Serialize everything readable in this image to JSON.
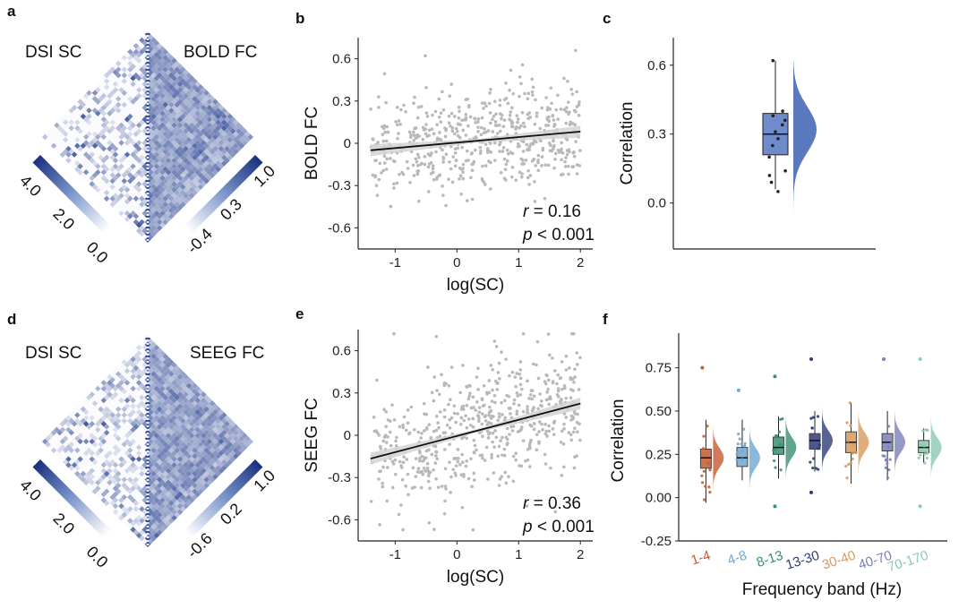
{
  "chart_data": [
    {
      "panel": "a",
      "type": "heatmap",
      "left_label": "DSI SC",
      "right_label": "BOLD FC",
      "left_colorbar": {
        "ticks": [
          "4.0",
          "2.0",
          "0.0"
        ],
        "range": [
          0.0,
          4.0
        ]
      },
      "right_colorbar": {
        "ticks": [
          "1.0",
          "0.3",
          "-0.4"
        ],
        "range": [
          -0.4,
          1.0
        ]
      }
    },
    {
      "panel": "b",
      "type": "scatter",
      "xlabel": "log(SC)",
      "ylabel": "BOLD FC",
      "xticks": [
        "-1",
        "0",
        "1",
        "2"
      ],
      "yticks": [
        "0.6",
        "0.3",
        "0",
        "-0.3",
        "-0.6"
      ],
      "xlim": [
        -1.6,
        2.2
      ],
      "ylim": [
        -0.75,
        0.75
      ],
      "fit": {
        "slope": 0.039,
        "intercept": 0.005,
        "x_range": [
          -1.4,
          2.0
        ]
      },
      "r_label": "r",
      "r_text": " = 0.16",
      "p_label": "p",
      "p_text": " < 0.001",
      "points_description_count": 560,
      "points_seed": 7,
      "noise_sd": 0.2
    },
    {
      "panel": "c",
      "type": "box",
      "ylabel": "Correlation",
      "yticks": [
        "0.6",
        "0.3",
        "0.0"
      ],
      "ylim": [
        -0.2,
        0.72
      ],
      "box": {
        "q1": 0.21,
        "median": 0.3,
        "q3": 0.39,
        "whisker_low": 0.06,
        "whisker_high": 0.62
      },
      "points": [
        0.62,
        0.4,
        0.38,
        0.36,
        0.34,
        0.31,
        0.28,
        0.25,
        0.2,
        0.14,
        0.12,
        0.09,
        0.05
      ],
      "color": "#5b79bf"
    },
    {
      "panel": "d",
      "type": "heatmap",
      "left_label": "DSI SC",
      "right_label": "SEEG FC",
      "left_colorbar": {
        "ticks": [
          "4.0",
          "2.0",
          "0.0"
        ],
        "range": [
          0.0,
          4.0
        ]
      },
      "right_colorbar": {
        "ticks": [
          "1.0",
          "0.2",
          "-0.6"
        ],
        "range": [
          -0.6,
          1.0
        ]
      }
    },
    {
      "panel": "e",
      "type": "scatter",
      "xlabel": "log(SC)",
      "ylabel": "SEEG FC",
      "xticks": [
        "-1",
        "0",
        "1",
        "2"
      ],
      "yticks": [
        "0.6",
        "0.3",
        "0",
        "-0.3",
        "-0.6"
      ],
      "xlim": [
        -1.6,
        2.2
      ],
      "ylim": [
        -0.75,
        0.75
      ],
      "fit": {
        "slope": 0.115,
        "intercept": -0.005,
        "x_range": [
          -1.4,
          2.0
        ]
      },
      "r_label": "r",
      "r_text": " = 0.36",
      "p_label": "p",
      "p_text": " < 0.001",
      "points_description_count": 560,
      "points_seed": 13,
      "noise_sd": 0.27
    },
    {
      "panel": "f",
      "type": "box",
      "xlabel": "Frequency band (Hz)",
      "ylabel": "Correlation",
      "yticks": [
        "0.75",
        "0.50",
        "0.25",
        "0.00",
        "-0.25"
      ],
      "ylim": [
        -0.25,
        0.95
      ],
      "categories": [
        "1-4",
        "4-8",
        "8-13",
        "13-30",
        "30-40",
        "40-70",
        "70-170"
      ],
      "colors": [
        "#c65a2e",
        "#6fa6d3",
        "#3a8f74",
        "#2e3c78",
        "#d89a5c",
        "#7b7fb8",
        "#8cc8b0"
      ],
      "series": [
        {
          "name": "1-4",
          "q1": 0.17,
          "median": 0.23,
          "q3": 0.28,
          "whisker_low": -0.03,
          "whisker_high": 0.45,
          "outliers": [
            0.75
          ]
        },
        {
          "name": "4-8",
          "q1": 0.18,
          "median": 0.23,
          "q3": 0.29,
          "whisker_low": 0.1,
          "whisker_high": 0.45,
          "outliers": [
            0.62
          ]
        },
        {
          "name": "8-13",
          "q1": 0.25,
          "median": 0.29,
          "q3": 0.35,
          "whisker_low": 0.11,
          "whisker_high": 0.47,
          "outliers": [
            -0.05,
            0.7
          ]
        },
        {
          "name": "13-30",
          "q1": 0.28,
          "median": 0.33,
          "q3": 0.37,
          "whisker_low": 0.15,
          "whisker_high": 0.5,
          "outliers": [
            0.03,
            0.8
          ]
        },
        {
          "name": "30-40",
          "q1": 0.26,
          "median": 0.32,
          "q3": 0.38,
          "whisker_low": 0.08,
          "whisker_high": 0.55,
          "outliers": []
        },
        {
          "name": "40-70",
          "q1": 0.27,
          "median": 0.32,
          "q3": 0.37,
          "whisker_low": 0.1,
          "whisker_high": 0.5,
          "outliers": [
            0.8
          ]
        },
        {
          "name": "70-170",
          "q1": 0.26,
          "median": 0.29,
          "q3": 0.33,
          "whisker_low": 0.2,
          "whisker_high": 0.4,
          "outliers": [
            -0.05,
            0.8
          ]
        }
      ]
    }
  ]
}
